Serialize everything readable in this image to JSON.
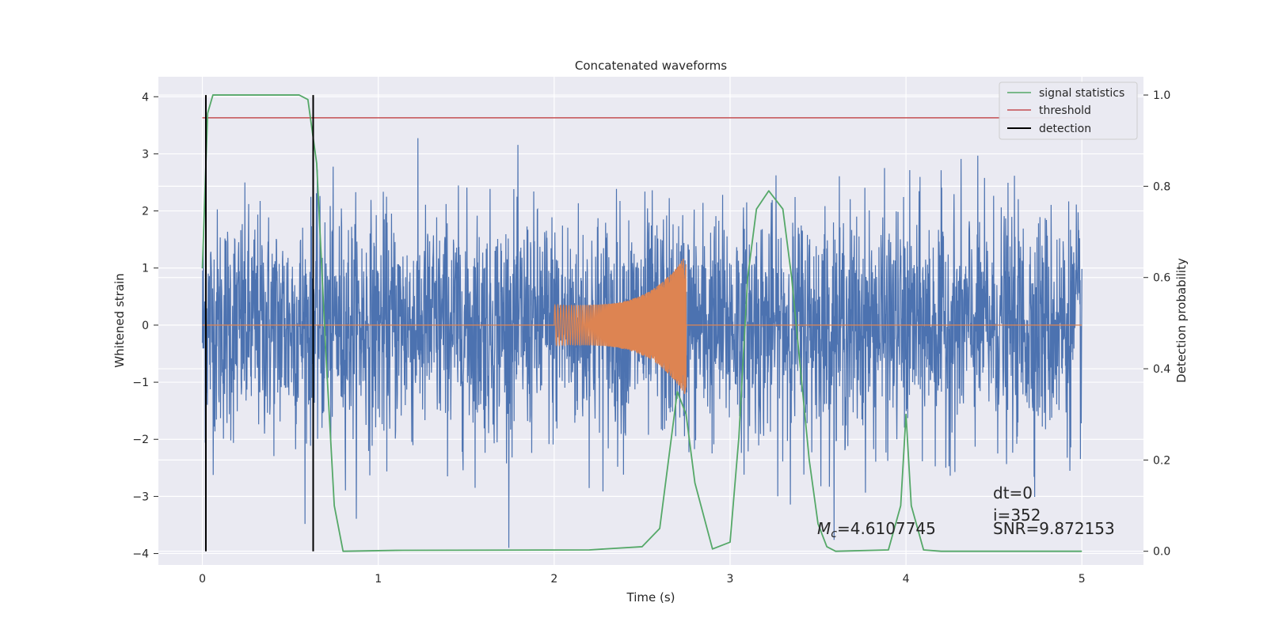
{
  "chart_data": {
    "type": "line",
    "title": "Concatenated waveforms",
    "xlabel": "Time (s)",
    "ylabel_left": "Whitened strain",
    "ylabel_right": "Detection probability",
    "xlim": [
      -0.25,
      5.35
    ],
    "ylim_left": [
      -4.2,
      4.35
    ],
    "ylim_right": [
      -0.03,
      1.04
    ],
    "x_ticks": [
      0,
      1,
      2,
      3,
      4,
      5
    ],
    "y_ticks_left": [
      4,
      3,
      2,
      1,
      0,
      -1,
      -2,
      -3,
      -4
    ],
    "y_ticks_right": [
      1.0,
      0.8,
      0.6,
      0.4,
      0.2,
      0.0
    ],
    "grid": true,
    "legend_position": "top-right",
    "series": [
      {
        "name": "signal statistics",
        "axis": "right",
        "color": "#55a868",
        "x": [
          0,
          0.03,
          0.06,
          0.1,
          0.55,
          0.6,
          0.65,
          0.7,
          0.75,
          0.8,
          1.1,
          2.2,
          2.5,
          2.6,
          2.65,
          2.7,
          2.75,
          2.8,
          2.9,
          3.0,
          3.05,
          3.1,
          3.15,
          3.22,
          3.3,
          3.35,
          3.4,
          3.45,
          3.5,
          3.55,
          3.6,
          3.9,
          3.97,
          4.0,
          4.03,
          4.1,
          4.2,
          5.0
        ],
        "y": [
          0.62,
          0.96,
          1.0,
          1.0,
          1.0,
          0.99,
          0.85,
          0.45,
          0.1,
          0.0,
          0.002,
          0.003,
          0.01,
          0.05,
          0.2,
          0.35,
          0.3,
          0.15,
          0.005,
          0.02,
          0.25,
          0.6,
          0.75,
          0.79,
          0.75,
          0.6,
          0.4,
          0.2,
          0.06,
          0.01,
          0.0,
          0.003,
          0.1,
          0.3,
          0.1,
          0.003,
          0.0,
          0.0
        ]
      },
      {
        "name": "threshold",
        "axis": "right",
        "color": "#c44e52",
        "x": [
          0,
          5
        ],
        "y": [
          0.95,
          0.95
        ]
      },
      {
        "name": "detection",
        "axis": "right",
        "color": "#000000",
        "segments": [
          {
            "x": 0.02,
            "y": [
              0.0,
              1.0
            ]
          },
          {
            "x": 0.63,
            "y": [
              0.0,
              1.0
            ]
          }
        ]
      },
      {
        "name": "",
        "axis": "left",
        "color": "#4c72b0",
        "description_values": {
          "x_range": [
            0,
            5
          ],
          "typical_amplitude": 1.0,
          "peak_values": [
            3.7,
            -3.6,
            3.2,
            -3.7
          ]
        }
      },
      {
        "name": "",
        "axis": "left",
        "color": "#dd8452",
        "x_range": [
          2.0,
          2.75
        ],
        "amplitude_start": 0.35,
        "amplitude_end": 1.25
      }
    ],
    "annotations": {
      "dt": "dt=0",
      "i": "i=352",
      "snr": "SNR=9.872153",
      "mc": "=4.6107745",
      "mc_symbol": "M",
      "mc_subscript": "c"
    }
  },
  "colors": {
    "plot_background": "#eaeaf2",
    "grid": "#ffffff",
    "text": "#262626"
  }
}
